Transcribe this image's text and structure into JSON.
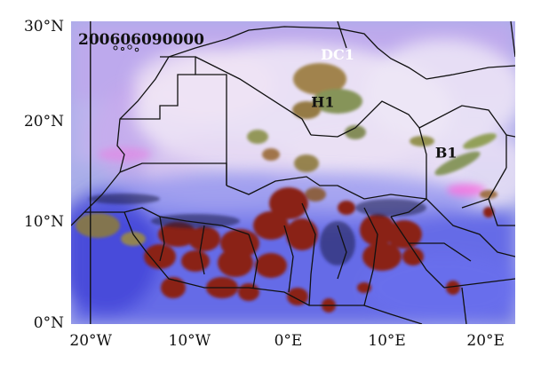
{
  "map": {
    "timestamp": "200606090000",
    "y_axis": {
      "ticks": [
        "30°N",
        "20°N",
        "10°N",
        "0°N"
      ],
      "values": [
        30,
        20,
        10,
        0
      ],
      "range": [
        0,
        30
      ]
    },
    "x_axis": {
      "ticks": [
        "20°W",
        "10°W",
        "0°E",
        "10°E",
        "20°E"
      ],
      "values": [
        -20,
        -10,
        0,
        10,
        20
      ],
      "range": [
        -22,
        23
      ]
    },
    "features": [
      {
        "label": "DC1",
        "lon": 5,
        "lat": 26.2
      },
      {
        "label": "H1",
        "lon": 3.5,
        "lat": 21.5
      },
      {
        "label": "B1",
        "lon": 16,
        "lat": 16.5
      }
    ],
    "colors": {
      "background": "#aab0ee",
      "deep_convection": "#8a2018",
      "dust": "#ff66dd",
      "desert": "#e8e0f2"
    }
  }
}
